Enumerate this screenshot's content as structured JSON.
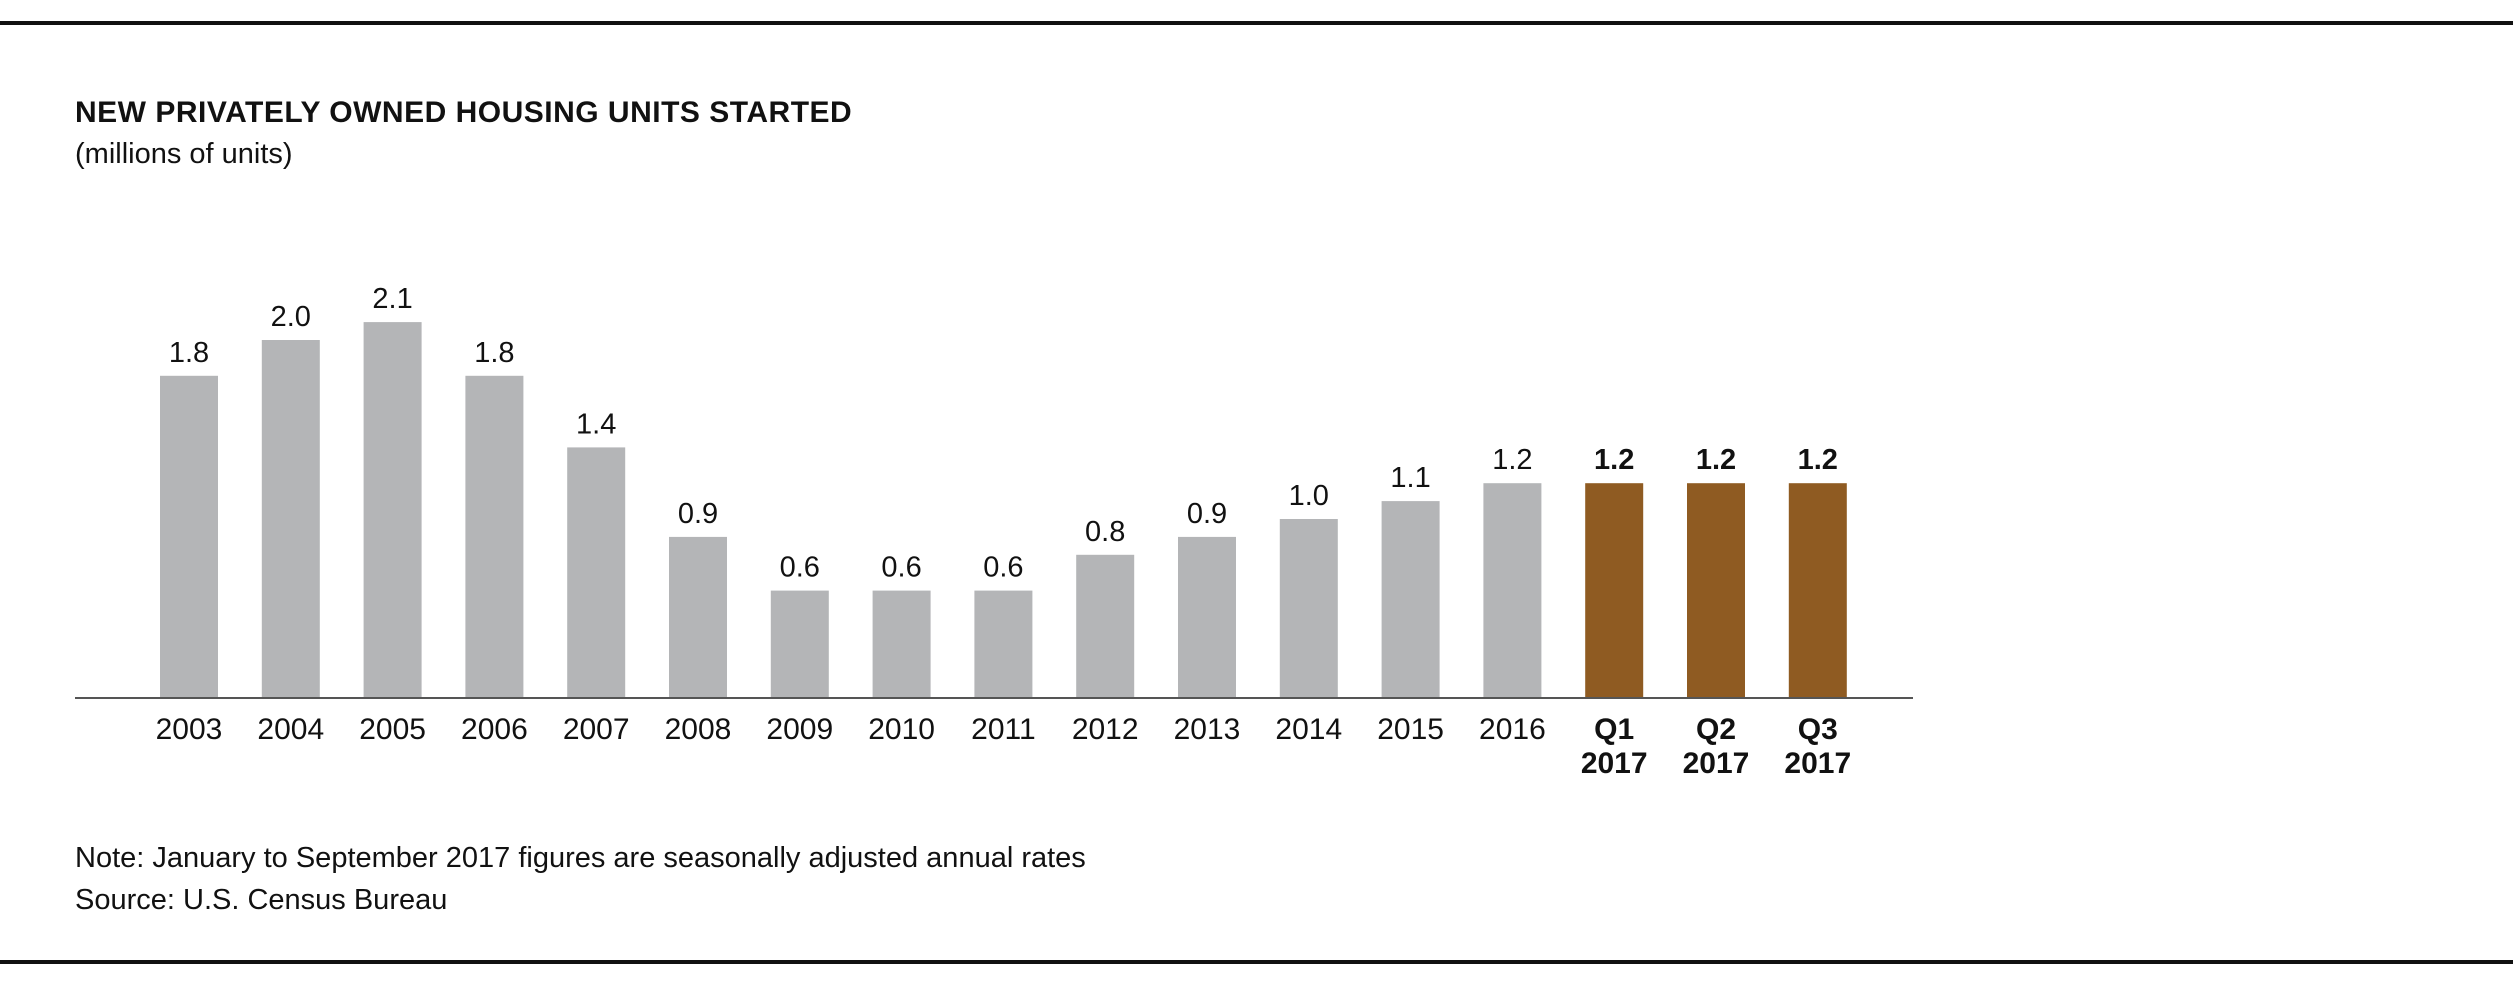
{
  "title": "NEW PRIVATELY OWNED HOUSING UNITS STARTED",
  "subtitle": "(millions of units)",
  "note": "Note: January to September 2017 figures are seasonally adjusted annual rates",
  "source": "Source: U.S. Census Bureau",
  "chart_data": {
    "type": "bar",
    "title": "NEW PRIVATELY OWNED HOUSING UNITS STARTED",
    "ylabel": "(millions of units)",
    "xlabel": "",
    "categories": [
      "2003",
      "2004",
      "2005",
      "2006",
      "2007",
      "2008",
      "2009",
      "2010",
      "2011",
      "2012",
      "2013",
      "2014",
      "2015",
      "2016",
      "Q1 2017",
      "Q2 2017",
      "Q3 2017"
    ],
    "category_lines": [
      [
        "2003"
      ],
      [
        "2004"
      ],
      [
        "2005"
      ],
      [
        "2006"
      ],
      [
        "2007"
      ],
      [
        "2008"
      ],
      [
        "2009"
      ],
      [
        "2010"
      ],
      [
        "2011"
      ],
      [
        "2012"
      ],
      [
        "2013"
      ],
      [
        "2014"
      ],
      [
        "2015"
      ],
      [
        "2016"
      ],
      [
        "Q1",
        "2017"
      ],
      [
        "Q2",
        "2017"
      ],
      [
        "Q3",
        "2017"
      ]
    ],
    "values": [
      1.8,
      2.0,
      2.1,
      1.8,
      1.4,
      0.9,
      0.6,
      0.6,
      0.6,
      0.8,
      0.9,
      1.0,
      1.1,
      1.2,
      1.2,
      1.2,
      1.2
    ],
    "value_labels": [
      "1.8",
      "2.0",
      "2.1",
      "1.8",
      "1.4",
      "0.9",
      "0.6",
      "0.6",
      "0.6",
      "0.8",
      "0.9",
      "1.0",
      "1.1",
      "1.2",
      "1.2",
      "1.2",
      "1.2"
    ],
    "highlighted": [
      false,
      false,
      false,
      false,
      false,
      false,
      false,
      false,
      false,
      false,
      false,
      false,
      false,
      false,
      true,
      true,
      true
    ],
    "ylim": [
      0,
      2.1
    ],
    "grid": false,
    "legend": "none",
    "colors": {
      "bar": "#b4b5b7",
      "highlight": "#8f5b22",
      "axis": "#555555",
      "text": "#111111"
    }
  }
}
